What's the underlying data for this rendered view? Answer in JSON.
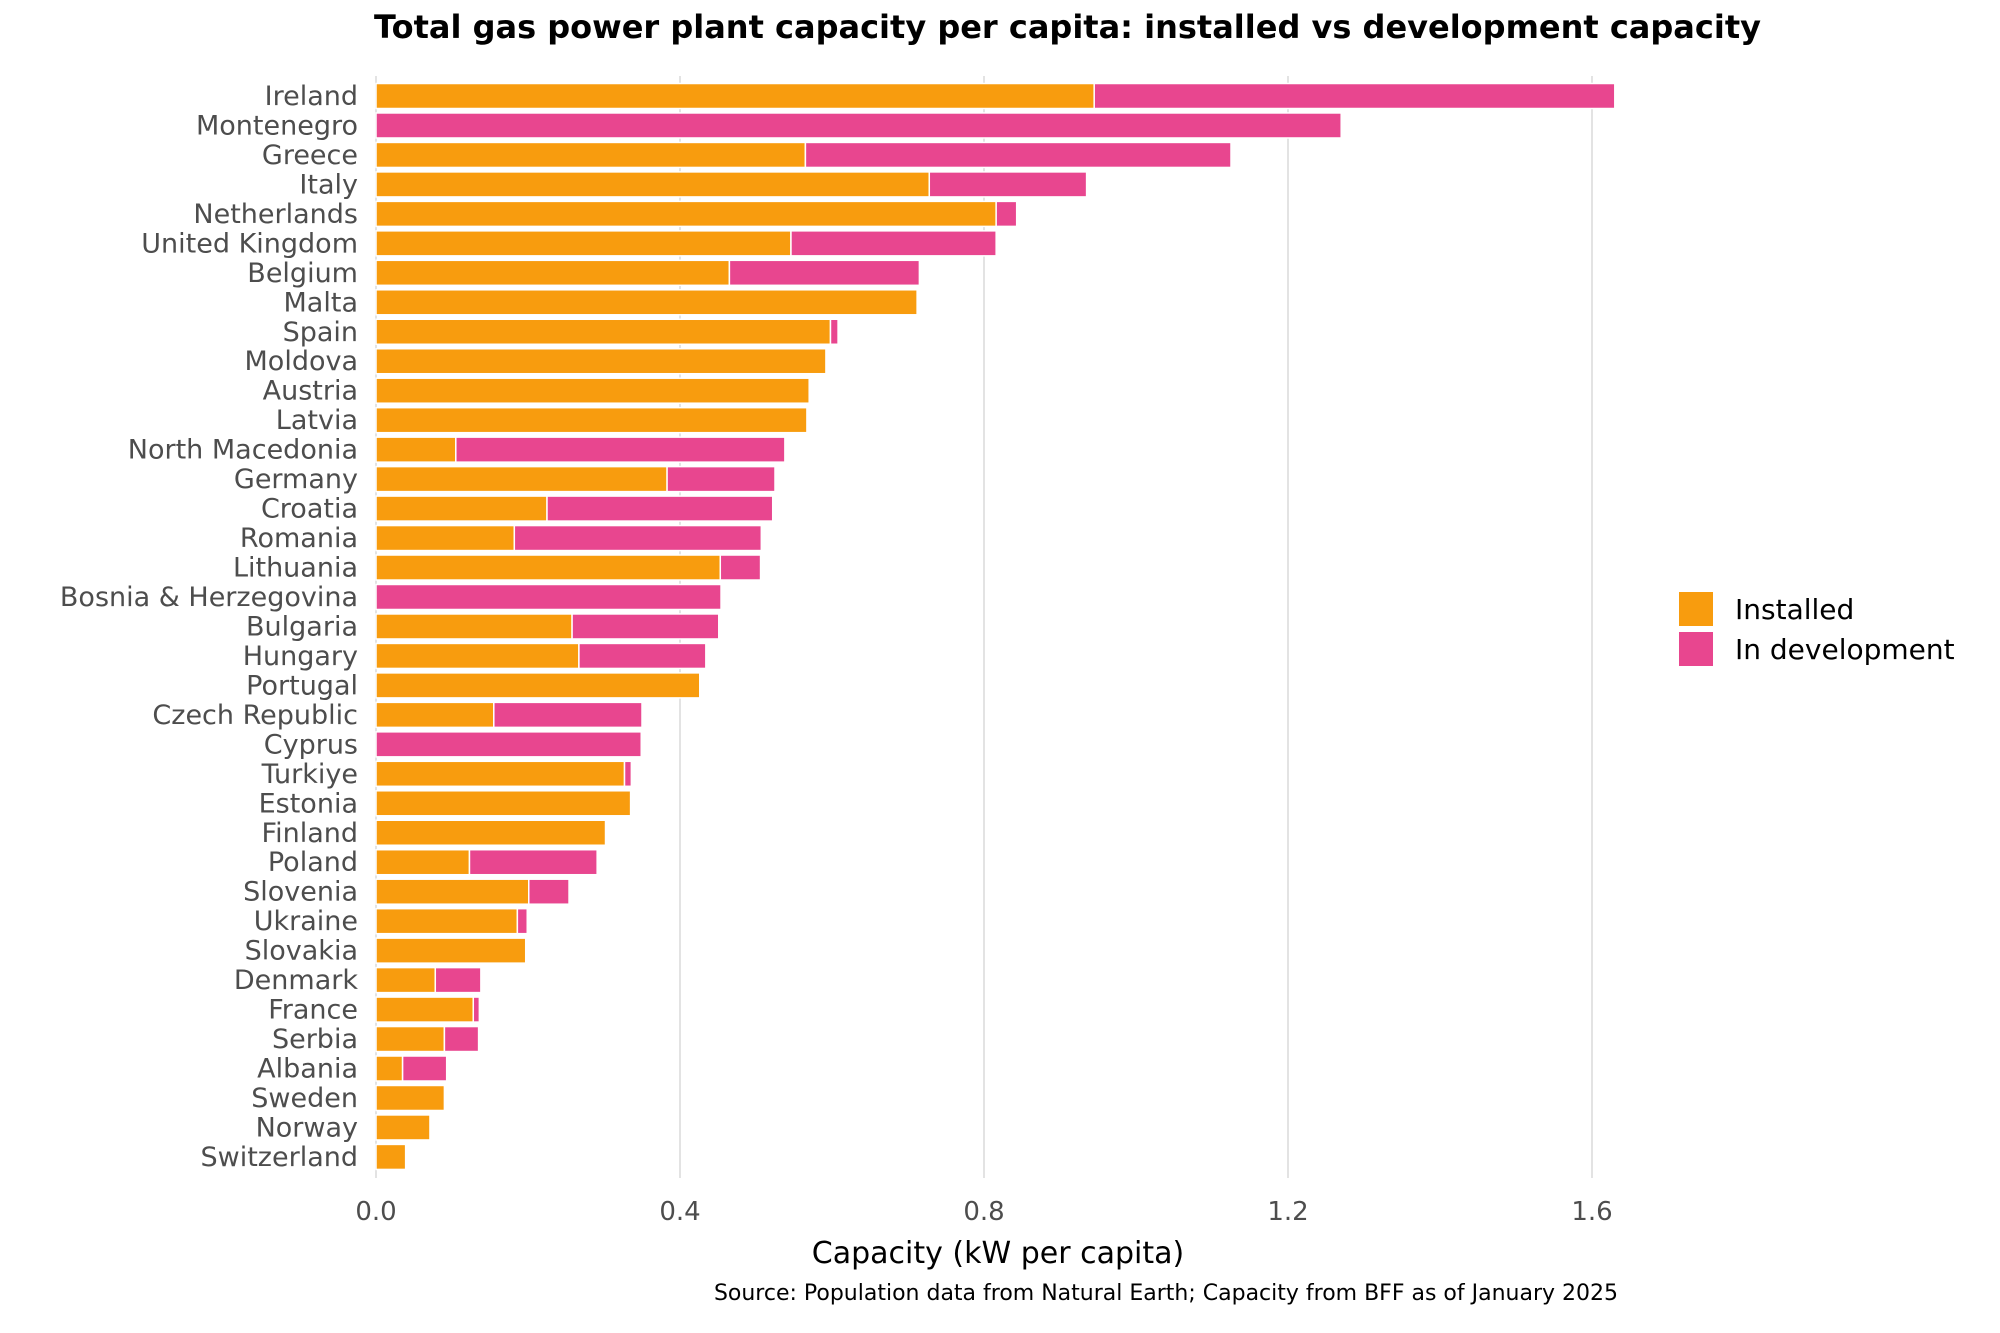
{
  "chart_data": {
    "type": "bar",
    "orientation": "horizontal",
    "stacked": true,
    "title": "Total gas power plant capacity per capita: installed vs development capacity",
    "xlabel": "Capacity (kW per capita)",
    "ylabel": "",
    "xlim": [
      0,
      1.65
    ],
    "xticks": [
      0.0,
      0.4,
      0.8,
      1.2,
      1.6
    ],
    "xtick_labels": [
      "0.0",
      "0.4",
      "0.8",
      "1.2",
      "1.6"
    ],
    "grid": "vertical major gridlines",
    "legend_position": "right",
    "source": "Source: Population data from Natural Earth; Capacity from BFF as of January 2025",
    "categories": [
      "Ireland",
      "Montenegro",
      "Greece",
      "Italy",
      "Netherlands",
      "United Kingdom",
      "Belgium",
      "Malta",
      "Spain",
      "Moldova",
      "Austria",
      "Latvia",
      "North Macedonia",
      "Germany",
      "Croatia",
      "Romania",
      "Lithuania",
      "Bosnia & Herzegovina",
      "Bulgaria",
      "Hungary",
      "Portugal",
      "Czech Republic",
      "Cyprus",
      "Turkiye",
      "Estonia",
      "Finland",
      "Poland",
      "Slovenia",
      "Ukraine",
      "Slovakia",
      "Denmark",
      "France",
      "Serbia",
      "Albania",
      "Sweden",
      "Norway",
      "Switzerland"
    ],
    "series": [
      {
        "name": "Installed",
        "color": "#f89c0e",
        "values": [
          0.945,
          0,
          0.565,
          0.728,
          0.816,
          0.546,
          0.465,
          0.712,
          0.598,
          0.592,
          0.57,
          0.567,
          0.105,
          0.383,
          0.225,
          0.182,
          0.453,
          0,
          0.258,
          0.267,
          0.426,
          0.155,
          0,
          0.327,
          0.335,
          0.302,
          0.123,
          0.201,
          0.186,
          0.197,
          0.078,
          0.128,
          0.09,
          0.035,
          0.09,
          0.071,
          0.039
        ]
      },
      {
        "name": "In development",
        "color": "#e8468f",
        "values": [
          0.685,
          1.27,
          0.56,
          0.207,
          0.027,
          0.27,
          0.25,
          0,
          0.01,
          0,
          0,
          0,
          0.433,
          0.142,
          0.297,
          0.325,
          0.053,
          0.454,
          0.193,
          0.167,
          0,
          0.195,
          0.349,
          0.009,
          0,
          0,
          0.168,
          0.053,
          0.013,
          0,
          0.06,
          0.008,
          0.045,
          0.058,
          0,
          0,
          0
        ]
      }
    ]
  },
  "text": {
    "title": "Total gas power plant capacity per capita: installed vs development capacity",
    "xlabel": "Capacity (kW per capita)",
    "source": "Source: Population data from Natural Earth; Capacity from BFF as of January 2025"
  }
}
